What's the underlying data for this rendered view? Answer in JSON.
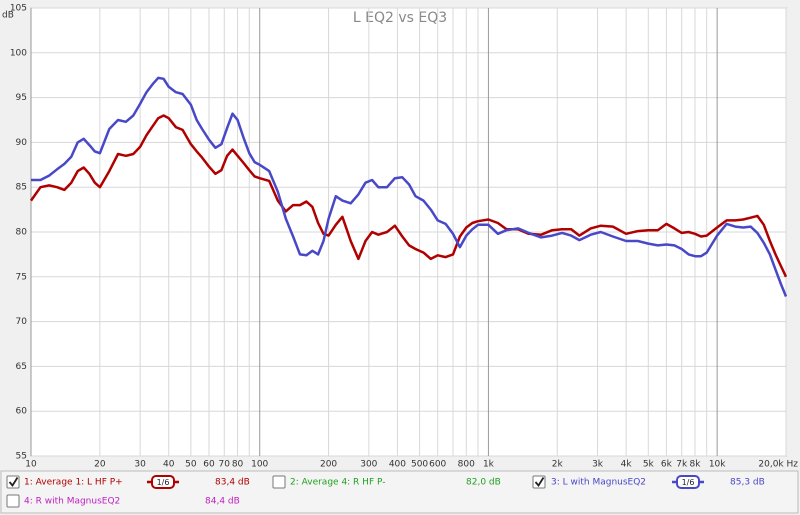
{
  "chart_data": {
    "type": "line",
    "title": "L EQ2 vs EQ3",
    "y_label": "dB",
    "x": [
      10,
      11,
      12,
      13,
      14,
      15,
      16,
      17,
      18,
      19,
      20,
      22,
      24,
      26,
      28,
      30,
      32,
      34,
      36,
      38,
      40,
      43,
      46,
      50,
      53,
      56,
      60,
      64,
      68,
      72,
      76,
      80,
      85,
      90,
      95,
      100,
      110,
      120,
      130,
      140,
      150,
      160,
      170,
      180,
      190,
      200,
      215,
      230,
      250,
      270,
      290,
      310,
      330,
      360,
      390,
      420,
      450,
      480,
      520,
      560,
      600,
      650,
      700,
      750,
      800,
      850,
      900,
      1000,
      1100,
      1200,
      1350,
      1500,
      1700,
      1900,
      2100,
      2300,
      2500,
      2800,
      3100,
      3500,
      4000,
      4500,
      5000,
      5500,
      6000,
      6500,
      7000,
      7500,
      8000,
      8500,
      9000,
      10000,
      11000,
      12000,
      13000,
      14000,
      15000,
      16000,
      17000,
      18000,
      19000,
      20000
    ],
    "series": [
      {
        "name": "1: Average 1: L HF P+",
        "color": "#b00000",
        "checked": true,
        "smoothing": "1/6",
        "level": "83,4 dB",
        "values": [
          83.5,
          85,
          85.2,
          85,
          84.7,
          85.5,
          86.8,
          87.2,
          86.5,
          85.5,
          85,
          86.8,
          88.7,
          88.5,
          88.7,
          89.5,
          90.8,
          91.8,
          92.7,
          93,
          92.7,
          91.7,
          91.4,
          89.8,
          89,
          88.3,
          87.3,
          86.5,
          86.9,
          88.5,
          89.2,
          88.5,
          87.7,
          86.9,
          86.2,
          86,
          85.7,
          83.5,
          82.3,
          83,
          83,
          83.4,
          82.8,
          81,
          79.8,
          79.6,
          80.8,
          81.7,
          79,
          77,
          79,
          80,
          79.7,
          80,
          80.7,
          79.5,
          78.5,
          78.1,
          77.7,
          77,
          77.4,
          77.2,
          77.5,
          79.5,
          80.5,
          81,
          81.2,
          81.4,
          81,
          80.3,
          80.3,
          79.8,
          79.7,
          80.2,
          80.3,
          80.3,
          79.6,
          80.4,
          80.7,
          80.6,
          79.8,
          80.1,
          80.2,
          80.2,
          80.9,
          80.4,
          79.9,
          80,
          79.8,
          79.5,
          79.6,
          80.5,
          81.3,
          81.3,
          81.4,
          81.6,
          81.8,
          80.8,
          79,
          77.5,
          76.2,
          75
        ]
      },
      {
        "name": "2: Average 4: R HF P-",
        "color": "#20a020",
        "checked": false,
        "level": "82,0 dB"
      },
      {
        "name": "3: L with MagnusEQ2",
        "color": "#4848c8",
        "checked": true,
        "smoothing": "1/6",
        "level": "85,3 dB",
        "values": [
          85.8,
          85.8,
          86.3,
          87,
          87.6,
          88.4,
          90,
          90.4,
          89.7,
          89,
          88.8,
          91.5,
          92.5,
          92.3,
          93,
          94.3,
          95.6,
          96.5,
          97.2,
          97.1,
          96.2,
          95.6,
          95.4,
          94.2,
          92.5,
          91.5,
          90.3,
          89.4,
          89.8,
          91.6,
          93.2,
          92.5,
          90.5,
          88.8,
          87.8,
          87.5,
          86.8,
          84.5,
          81.5,
          79.5,
          77.5,
          77.4,
          77.9,
          77.5,
          79,
          81.5,
          84,
          83.5,
          83.2,
          84.2,
          85.5,
          85.8,
          85,
          85,
          86,
          86.1,
          85.3,
          84,
          83.5,
          82.5,
          81.3,
          80.9,
          79.8,
          78.3,
          79.6,
          80.3,
          80.8,
          80.8,
          79.8,
          80.2,
          80.4,
          79.9,
          79.4,
          79.6,
          79.9,
          79.6,
          79.1,
          79.7,
          80,
          79.5,
          79,
          79,
          78.7,
          78.5,
          78.6,
          78.5,
          78.1,
          77.5,
          77.3,
          77.3,
          77.7,
          79.6,
          80.9,
          80.6,
          80.5,
          80.6,
          79.9,
          78.8,
          77.5,
          75.8,
          74.2,
          72.8
        ]
      },
      {
        "name": "4: R with MagnusEQ2",
        "color": "#c020c0",
        "checked": false,
        "level": "84,4 dB"
      }
    ],
    "log_x": true,
    "grid": true,
    "xlim": [
      10,
      20000
    ],
    "ylim": [
      55,
      105
    ],
    "xticks": [
      10,
      20,
      30,
      40,
      50,
      60,
      70,
      80,
      100,
      200,
      300,
      400,
      500,
      600,
      800,
      {
        "value": 1000,
        "label": "1k"
      },
      {
        "value": 2000,
        "label": "2k"
      },
      {
        "value": 3000,
        "label": "3k"
      },
      {
        "value": 4000,
        "label": "4k"
      },
      {
        "value": 5000,
        "label": "5k"
      },
      {
        "value": 6000,
        "label": "6k"
      },
      {
        "value": 7000,
        "label": "7k"
      },
      {
        "value": 8000,
        "label": "8k"
      },
      {
        "value": 10000,
        "label": "10k"
      },
      {
        "value": 20000,
        "label": "20,0k Hz"
      }
    ],
    "x_minor_grid": [
      90,
      700,
      900,
      9000
    ],
    "yticks": [
      55,
      60,
      65,
      70,
      75,
      80,
      85,
      90,
      95,
      100,
      105
    ]
  }
}
